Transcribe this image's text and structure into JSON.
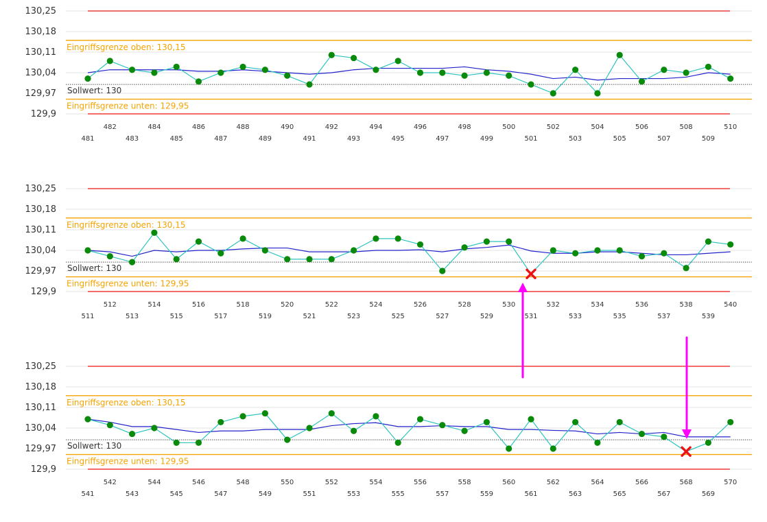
{
  "colors": {
    "limit_red": "#ee3b3b",
    "intervention_orange": "#f5a300",
    "values_line": "#2ec4c0",
    "values_marker": "#0a8a0a",
    "mean_line": "#2222cc",
    "target_line": "#555555",
    "grid": "#e3e3e3",
    "violation_marker": "#ee1111",
    "annotation_arrow": "#ff00ff"
  },
  "chart_data": [
    {
      "type": "line",
      "ylim": [
        129.88,
        130.27
      ],
      "y_ticks": [
        "130,25",
        "130,18",
        "130,11",
        "130,04",
        "129,97",
        "129,9"
      ],
      "y_tick_values": [
        130.25,
        130.18,
        130.11,
        130.04,
        129.97,
        129.9
      ],
      "limits": {
        "upper_red": 130.25,
        "lower_red": 129.9,
        "upper_orange": 130.15,
        "lower_orange": 129.95,
        "target": 130.0
      },
      "labels": {
        "upper_intervention": "Eingriffsgrenze oben: 130,15",
        "lower_intervention": "Eingriffsgrenze unten: 129,95",
        "target": "Sollwert: 130"
      },
      "x": [
        481,
        482,
        483,
        484,
        485,
        486,
        487,
        488,
        489,
        490,
        491,
        492,
        493,
        494,
        495,
        496,
        497,
        498,
        499,
        500,
        501,
        502,
        503,
        504,
        505,
        506,
        507,
        508,
        509,
        510
      ],
      "x_tick_labels": [
        "481",
        "482",
        "483",
        "484",
        "485",
        "486",
        "487",
        "488",
        "489",
        "490",
        "491",
        "492",
        "493",
        "494",
        "495",
        "496",
        "497",
        "498",
        "499",
        "500",
        "501",
        "502",
        "503",
        "504",
        "505",
        "506",
        "507",
        "508",
        "509",
        "510"
      ],
      "series": [
        {
          "values": [
            130.02,
            130.08,
            130.05,
            130.04,
            130.06,
            130.01,
            130.04,
            130.06,
            130.05,
            130.03,
            130.0,
            130.1,
            130.09,
            130.05,
            130.08,
            130.04,
            130.04,
            130.03,
            130.04,
            130.03,
            130.0,
            129.97,
            130.05,
            129.97,
            130.1,
            130.01,
            130.05,
            130.04,
            130.06,
            130.02
          ]
        },
        {
          "values": [
            130.04,
            130.05,
            130.05,
            130.05,
            130.05,
            130.045,
            130.045,
            130.05,
            130.045,
            130.04,
            130.035,
            130.04,
            130.05,
            130.055,
            130.055,
            130.055,
            130.055,
            130.06,
            130.05,
            130.045,
            130.035,
            130.02,
            130.025,
            130.015,
            130.02,
            130.02,
            130.02,
            130.025,
            130.04,
            130.035
          ]
        }
      ],
      "violations": []
    },
    {
      "type": "line",
      "ylim": [
        129.88,
        130.27
      ],
      "y_ticks": [
        "130,25",
        "130,18",
        "130,11",
        "130,04",
        "129,97",
        "129,9"
      ],
      "y_tick_values": [
        130.25,
        130.18,
        130.11,
        130.04,
        129.97,
        129.9
      ],
      "limits": {
        "upper_red": 130.25,
        "lower_red": 129.9,
        "upper_orange": 130.15,
        "lower_orange": 129.95,
        "target": 130.0
      },
      "labels": {
        "upper_intervention": "Eingriffsgrenze oben: 130,15",
        "lower_intervention": "Eingriffsgrenze unten: 129,95",
        "target": "Sollwert: 130"
      },
      "x": [
        511,
        512,
        513,
        514,
        515,
        516,
        517,
        518,
        519,
        520,
        521,
        522,
        523,
        524,
        525,
        526,
        527,
        528,
        529,
        530,
        531,
        532,
        533,
        534,
        535,
        536,
        537,
        538,
        539,
        540
      ],
      "x_tick_labels": [
        "511",
        "512",
        "513",
        "514",
        "515",
        "516",
        "517",
        "518",
        "519",
        "520",
        "521",
        "522",
        "523",
        "524",
        "525",
        "526",
        "527",
        "528",
        "529",
        "530",
        "531",
        "532",
        "533",
        "534",
        "535",
        "536",
        "537",
        "538",
        "539",
        "540"
      ],
      "series": [
        {
          "values": [
            130.04,
            130.02,
            130.0,
            130.1,
            130.01,
            130.07,
            130.03,
            130.08,
            130.04,
            130.01,
            130.01,
            130.01,
            130.04,
            130.08,
            130.08,
            130.06,
            129.97,
            130.05,
            130.07,
            130.07,
            129.96,
            130.04,
            130.03,
            130.04,
            130.04,
            130.02,
            130.03,
            129.98,
            130.07,
            130.06
          ]
        },
        {
          "values": [
            130.04,
            130.035,
            130.02,
            130.04,
            130.035,
            130.04,
            130.04,
            130.045,
            130.048,
            130.048,
            130.035,
            130.035,
            130.035,
            130.04,
            130.04,
            130.042,
            130.035,
            130.045,
            130.05,
            130.058,
            130.038,
            130.03,
            130.03,
            130.035,
            130.035,
            130.03,
            130.025,
            130.025,
            130.03,
            130.035
          ]
        }
      ],
      "violations": [
        {
          "x": 531,
          "value": 129.96
        }
      ]
    },
    {
      "type": "line",
      "ylim": [
        129.88,
        130.27
      ],
      "y_ticks": [
        "130,25",
        "130,18",
        "130,11",
        "130,04",
        "129,97",
        "129,9"
      ],
      "y_tick_values": [
        130.25,
        130.18,
        130.11,
        130.04,
        129.97,
        129.9
      ],
      "limits": {
        "upper_red": 130.25,
        "lower_red": 129.9,
        "upper_orange": 130.15,
        "lower_orange": 129.95,
        "target": 130.0
      },
      "labels": {
        "upper_intervention": "Eingriffsgrenze oben: 130,15",
        "lower_intervention": "Eingriffsgrenze unten: 129,95",
        "target": "Sollwert: 130"
      },
      "x": [
        541,
        542,
        543,
        544,
        545,
        546,
        547,
        548,
        549,
        550,
        551,
        552,
        553,
        554,
        555,
        556,
        557,
        558,
        559,
        560,
        561,
        562,
        563,
        564,
        565,
        566,
        567,
        568,
        569,
        570
      ],
      "x_tick_labels": [
        "541",
        "542",
        "543",
        "544",
        "545",
        "546",
        "547",
        "548",
        "549",
        "550",
        "551",
        "552",
        "553",
        "554",
        "555",
        "556",
        "557",
        "558",
        "559",
        "560",
        "561",
        "562",
        "563",
        "564",
        "565",
        "566",
        "567",
        "568",
        "569",
        "570"
      ],
      "series": [
        {
          "values": [
            130.07,
            130.05,
            130.02,
            130.04,
            129.99,
            129.99,
            130.06,
            130.08,
            130.09,
            130.0,
            130.04,
            130.09,
            130.03,
            130.08,
            129.99,
            130.07,
            130.05,
            130.03,
            130.06,
            129.97,
            130.07,
            129.97,
            130.06,
            129.99,
            130.06,
            130.02,
            130.01,
            129.96,
            129.99,
            130.06
          ]
        },
        {
          "values": [
            130.07,
            130.06,
            130.045,
            130.045,
            130.035,
            130.025,
            130.03,
            130.03,
            130.035,
            130.035,
            130.035,
            130.048,
            130.055,
            130.058,
            130.045,
            130.045,
            130.048,
            130.045,
            130.045,
            130.035,
            130.035,
            130.032,
            130.03,
            130.02,
            130.025,
            130.02,
            130.025,
            130.01,
            130.01,
            130.01
          ]
        }
      ],
      "violations": [
        {
          "x": 568,
          "value": 129.96
        }
      ]
    }
  ]
}
